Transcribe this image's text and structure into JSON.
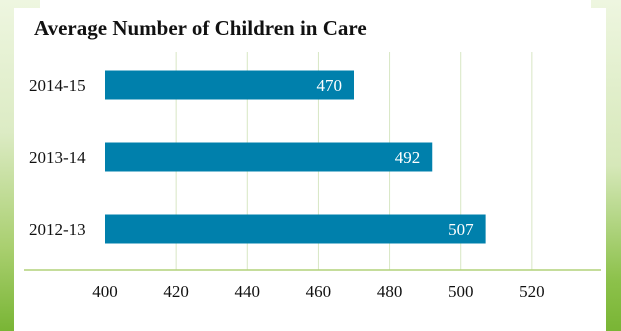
{
  "chart_data": {
    "type": "bar",
    "orientation": "horizontal",
    "title": "Average Number of Children in Care",
    "xlabel": "",
    "ylabel": "",
    "categories": [
      "2014-15",
      "2013-14",
      "2012-13"
    ],
    "values": [
      470,
      492,
      507
    ],
    "data_labels": [
      "470",
      "492",
      "507"
    ],
    "xlim": [
      400,
      540
    ],
    "x_ticks": [
      400,
      420,
      440,
      460,
      480,
      500,
      520
    ],
    "grid": "vertical",
    "legend": "none",
    "colors": {
      "bar": "#0080ac",
      "grid": "#d8e6c4",
      "axis": "#b2d27a",
      "background_accent": "#79b535"
    }
  }
}
